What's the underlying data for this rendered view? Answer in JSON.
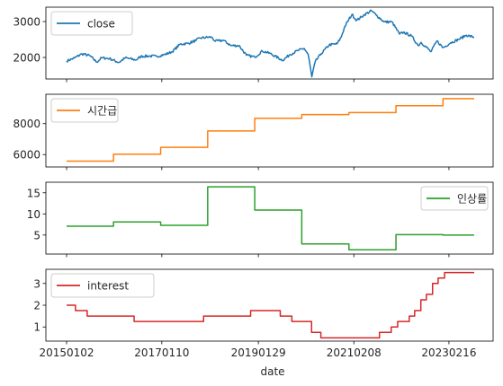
{
  "chart_data": {
    "type": "line",
    "xlabel": "date",
    "x_tick_labels": [
      "20150102",
      "20170110",
      "20190129",
      "20210208",
      "20230216"
    ],
    "x_range": [
      "2015-01-02",
      "2023-08-31"
    ],
    "panels": [
      {
        "series_name": "close",
        "color": "#1f77b4",
        "legend_position": "top-left",
        "ylim": [
          1400,
          3400
        ],
        "yticks": [
          2000,
          3000
        ],
        "x": [
          "2015-01-02",
          "2015-03-01",
          "2015-05-01",
          "2015-07-01",
          "2015-08-24",
          "2015-10-01",
          "2015-12-01",
          "2016-02-12",
          "2016-04-01",
          "2016-06-24",
          "2016-08-01",
          "2016-10-01",
          "2016-12-01",
          "2017-02-01",
          "2017-04-01",
          "2017-06-01",
          "2017-08-01",
          "2017-10-01",
          "2017-11-01",
          "2018-01-29",
          "2018-03-01",
          "2018-05-01",
          "2018-07-01",
          "2018-09-01",
          "2018-10-29",
          "2019-01-02",
          "2019-03-01",
          "2019-05-01",
          "2019-08-06",
          "2019-10-01",
          "2019-12-01",
          "2020-01-20",
          "2020-02-20",
          "2020-03-19",
          "2020-04-15",
          "2020-06-01",
          "2020-08-01",
          "2020-10-01",
          "2020-11-01",
          "2020-12-01",
          "2021-01-25",
          "2021-03-01",
          "2021-05-01",
          "2021-06-25",
          "2021-08-01",
          "2021-10-01",
          "2021-12-01",
          "2022-01-28",
          "2022-03-01",
          "2022-05-01",
          "2022-06-23",
          "2022-07-15",
          "2022-09-30",
          "2022-11-15",
          "2023-01-01",
          "2023-03-01",
          "2023-05-01",
          "2023-07-01",
          "2023-08-31"
        ],
        "y": [
          1900,
          1980,
          2100,
          2050,
          1870,
          1990,
          1970,
          1860,
          1990,
          1930,
          2030,
          2040,
          2030,
          2080,
          2160,
          2370,
          2390,
          2470,
          2540,
          2570,
          2450,
          2480,
          2330,
          2330,
          2060,
          2010,
          2180,
          2110,
          1920,
          2080,
          2190,
          2250,
          2080,
          1460,
          1890,
          2110,
          2350,
          2380,
          2560,
          2870,
          3200,
          3030,
          3190,
          3300,
          3180,
          2990,
          2990,
          2650,
          2700,
          2600,
          2330,
          2420,
          2160,
          2460,
          2270,
          2410,
          2500,
          2620,
          2560
        ]
      },
      {
        "series_name": "시간급",
        "color": "#ff7f0e",
        "legend_position": "top-left",
        "ylim": [
          5200,
          9900
        ],
        "yticks": [
          6000,
          8000
        ],
        "step_dates": [
          "2015-01-02",
          "2016-01-01",
          "2017-01-01",
          "2018-01-01",
          "2019-01-01",
          "2020-01-01",
          "2021-01-01",
          "2022-01-01",
          "2023-01-01",
          "2023-08-31"
        ],
        "step_values": [
          5580,
          6030,
          6470,
          7530,
          8350,
          8590,
          8720,
          9160,
          9620,
          9620
        ]
      },
      {
        "series_name": "인상률",
        "color": "#2ca02c",
        "legend_position": "top-right",
        "ylim": [
          0.5,
          17.5
        ],
        "yticks": [
          5,
          10,
          15
        ],
        "step_dates": [
          "2015-01-02",
          "2016-01-01",
          "2017-01-01",
          "2018-01-01",
          "2019-01-01",
          "2020-01-01",
          "2021-01-01",
          "2022-01-01",
          "2023-01-01",
          "2023-08-31"
        ],
        "step_values": [
          7.1,
          8.1,
          7.3,
          16.4,
          10.9,
          2.9,
          1.5,
          5.1,
          5.0,
          5.0
        ]
      },
      {
        "series_name": "interest",
        "color": "#d62728",
        "legend_position": "top-left",
        "ylim": [
          0.35,
          3.65
        ],
        "yticks": [
          1,
          2,
          3
        ],
        "step_dates": [
          "2015-01-02",
          "2015-03-12",
          "2015-06-11",
          "2016-06-09",
          "2017-11-30",
          "2018-11-30",
          "2019-07-18",
          "2019-10-16",
          "2020-03-17",
          "2020-05-28",
          "2021-08-26",
          "2021-11-25",
          "2022-01-14",
          "2022-04-14",
          "2022-05-26",
          "2022-07-13",
          "2022-08-25",
          "2022-10-12",
          "2022-11-24",
          "2023-01-13",
          "2023-08-31"
        ],
        "step_values": [
          2.0,
          1.75,
          1.5,
          1.25,
          1.5,
          1.75,
          1.5,
          1.25,
          0.75,
          0.5,
          0.75,
          1.0,
          1.25,
          1.5,
          1.75,
          2.25,
          2.5,
          3.0,
          3.25,
          3.5,
          3.5
        ]
      }
    ]
  }
}
